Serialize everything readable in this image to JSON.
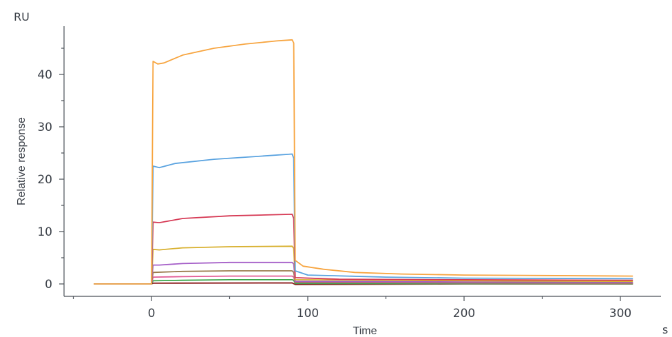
{
  "chart_data": {
    "type": "line",
    "y_unit": "RU",
    "x_unit": "s",
    "xlabel": "Time",
    "ylabel": "Relative response",
    "xlim": [
      -50,
      325
    ],
    "ylim": [
      -2.5,
      49
    ],
    "x_ticks": [
      0,
      100,
      200,
      300
    ],
    "y_ticks": [
      0,
      10,
      20,
      30,
      40
    ],
    "grid": false,
    "legend": "none",
    "series": [
      {
        "color": "#f7a540",
        "points": [
          [
            -37,
            0
          ],
          [
            0,
            0
          ],
          [
            1,
            42.5
          ],
          [
            4,
            42
          ],
          [
            8,
            42.2
          ],
          [
            20,
            43.7
          ],
          [
            40,
            45
          ],
          [
            60,
            45.8
          ],
          [
            80,
            46.4
          ],
          [
            90,
            46.6
          ],
          [
            91,
            46
          ],
          [
            92,
            4.5
          ],
          [
            97,
            3.4
          ],
          [
            110,
            2.8
          ],
          [
            130,
            2.2
          ],
          [
            160,
            1.9
          ],
          [
            200,
            1.7
          ],
          [
            250,
            1.6
          ],
          [
            308,
            1.5
          ]
        ]
      },
      {
        "color": "#5aa3e0",
        "points": [
          [
            -37,
            0
          ],
          [
            0,
            0
          ],
          [
            1,
            22.5
          ],
          [
            5,
            22.2
          ],
          [
            15,
            23
          ],
          [
            40,
            23.8
          ],
          [
            70,
            24.4
          ],
          [
            90,
            24.8
          ],
          [
            91,
            24
          ],
          [
            92,
            2.5
          ],
          [
            100,
            1.7
          ],
          [
            150,
            1.3
          ],
          [
            200,
            1.1
          ],
          [
            308,
            1
          ]
        ]
      },
      {
        "color": "#d63a55",
        "points": [
          [
            -37,
            0
          ],
          [
            0,
            0
          ],
          [
            1,
            11.8
          ],
          [
            5,
            11.7
          ],
          [
            20,
            12.5
          ],
          [
            50,
            13
          ],
          [
            90,
            13.3
          ],
          [
            91,
            12.5
          ],
          [
            92,
            1.2
          ],
          [
            120,
            0.9
          ],
          [
            200,
            0.8
          ],
          [
            308,
            0.7
          ]
        ]
      },
      {
        "color": "#d8b02e",
        "points": [
          [
            -37,
            0
          ],
          [
            0,
            0
          ],
          [
            1,
            6.6
          ],
          [
            5,
            6.5
          ],
          [
            20,
            6.9
          ],
          [
            50,
            7.1
          ],
          [
            90,
            7.2
          ],
          [
            91,
            6.8
          ],
          [
            92,
            0.8
          ],
          [
            200,
            0.6
          ],
          [
            308,
            0.5
          ]
        ]
      },
      {
        "color": "#a55fc8",
        "points": [
          [
            -37,
            0
          ],
          [
            0,
            0
          ],
          [
            1,
            3.6
          ],
          [
            5,
            3.6
          ],
          [
            20,
            3.9
          ],
          [
            50,
            4.1
          ],
          [
            90,
            4.1
          ],
          [
            91,
            3.8
          ],
          [
            92,
            0.5
          ],
          [
            200,
            0.4
          ],
          [
            308,
            0.3
          ]
        ]
      },
      {
        "color": "#9a7a4c",
        "points": [
          [
            -37,
            0
          ],
          [
            0,
            0
          ],
          [
            1,
            2.2
          ],
          [
            20,
            2.4
          ],
          [
            50,
            2.5
          ],
          [
            90,
            2.5
          ],
          [
            91,
            2.2
          ],
          [
            92,
            0.4
          ],
          [
            200,
            0.3
          ],
          [
            308,
            0.2
          ]
        ]
      },
      {
        "color": "#e25b95",
        "points": [
          [
            -37,
            0
          ],
          [
            0,
            0
          ],
          [
            1,
            1.3
          ],
          [
            20,
            1.4
          ],
          [
            50,
            1.5
          ],
          [
            90,
            1.5
          ],
          [
            91,
            1.3
          ],
          [
            92,
            0.3
          ],
          [
            200,
            0.2
          ],
          [
            308,
            0.15
          ]
        ]
      },
      {
        "color": "#3aa64a",
        "points": [
          [
            -37,
            0
          ],
          [
            0,
            0
          ],
          [
            1,
            0.6
          ],
          [
            20,
            0.7
          ],
          [
            50,
            0.8
          ],
          [
            90,
            0.8
          ],
          [
            91,
            0.7
          ],
          [
            92,
            0.1
          ],
          [
            200,
            0.05
          ],
          [
            308,
            0.05
          ]
        ]
      },
      {
        "color": "#8b1a1a",
        "points": [
          [
            -37,
            0
          ],
          [
            0,
            0
          ],
          [
            1,
            0.15
          ],
          [
            90,
            0.2
          ],
          [
            92,
            -0.1
          ],
          [
            200,
            0
          ],
          [
            308,
            0
          ]
        ]
      }
    ]
  }
}
